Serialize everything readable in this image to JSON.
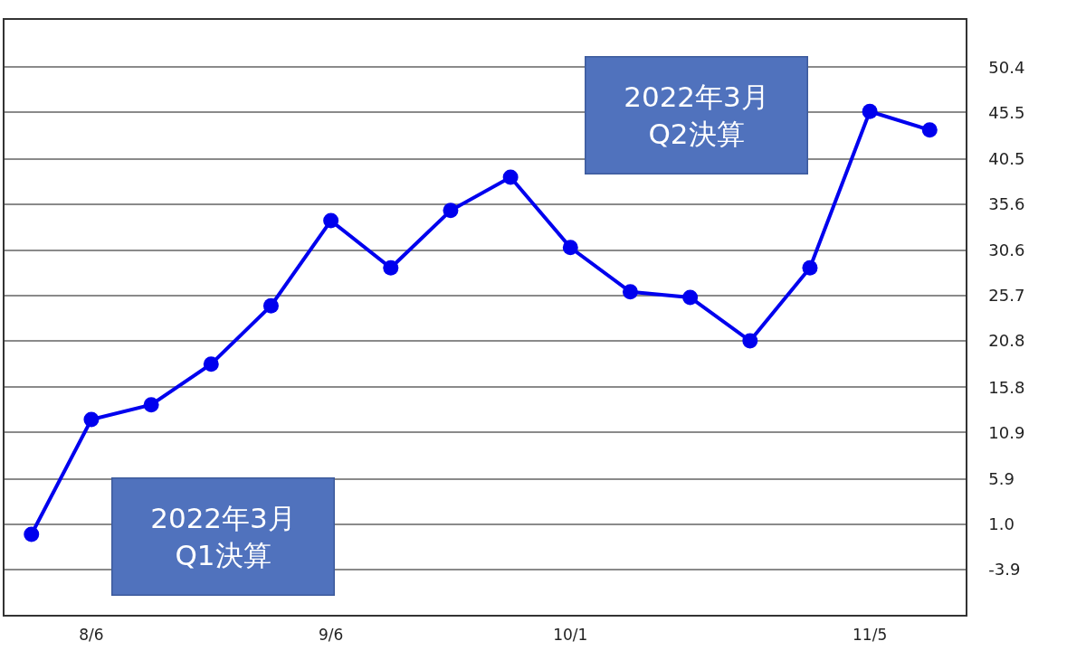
{
  "chart_data": {
    "type": "line",
    "categories": [
      null,
      "8/6",
      null,
      null,
      null,
      "9/6",
      null,
      null,
      null,
      "10/1",
      null,
      null,
      null,
      null,
      "11/5",
      null
    ],
    "series": [
      {
        "color": "#0000ee",
        "values": [
          -0.1,
          12.3,
          13.9,
          18.3,
          24.6,
          33.8,
          28.7,
          34.9,
          38.5,
          30.9,
          26.1,
          25.5,
          20.8,
          28.7,
          45.6,
          43.6
        ]
      }
    ],
    "ylim": [
      -8.8,
      55.5
    ],
    "yticks": [
      -3.9,
      {
        "value": 1,
        "label": "1.0"
      },
      5.9,
      10.9,
      15.8,
      20.8,
      25.7,
      30.6,
      35.6,
      40.5,
      45.5,
      50.4
    ],
    "grid": "y",
    "marker": "circle",
    "line_style": "solid",
    "annotations": [
      "2022年3月\nQ1決算",
      "2022年3月\nQ2決算"
    ]
  }
}
